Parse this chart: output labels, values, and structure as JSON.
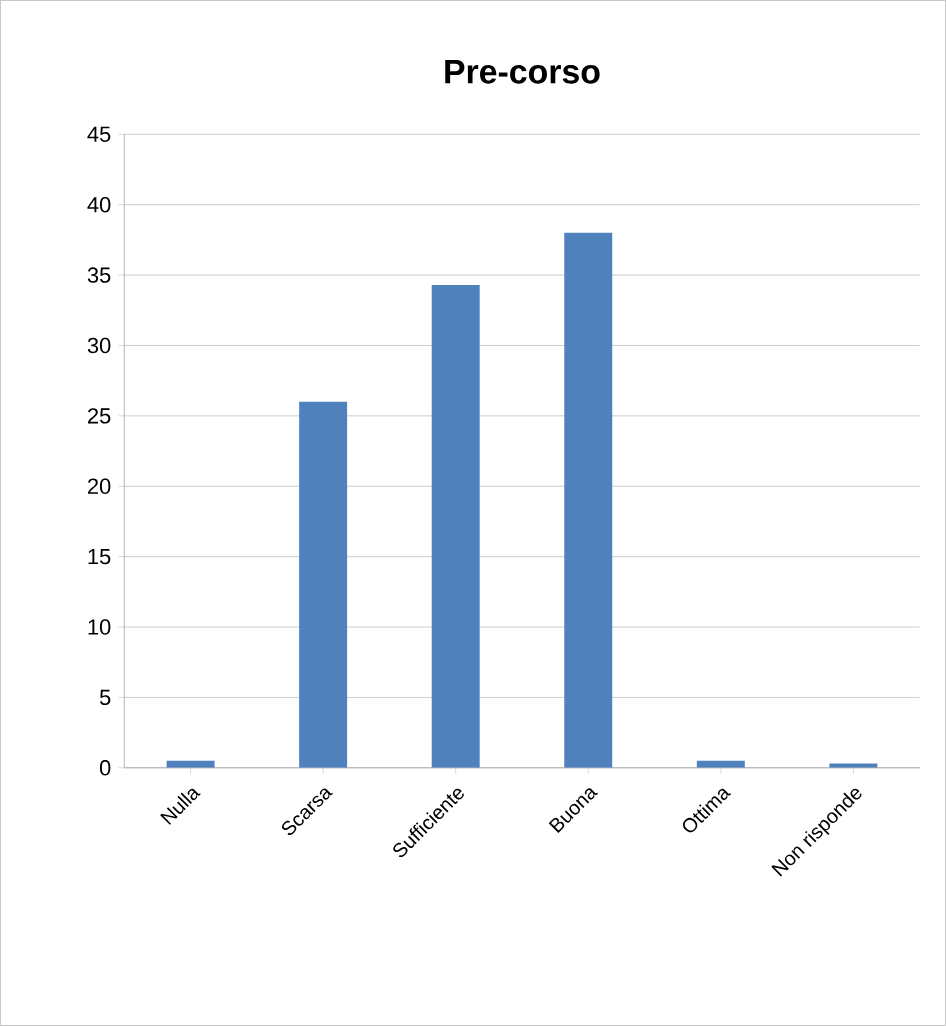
{
  "chart_data": {
    "type": "bar",
    "title": "Pre-corso",
    "categories": [
      "Nulla",
      "Scarsa",
      "Sufficiente",
      "Buona",
      "Ottima",
      "Non risponde"
    ],
    "values": [
      0.5,
      26,
      34.3,
      38,
      0.5,
      0.3
    ],
    "color": "#4f81bd",
    "ylim": [
      0,
      45
    ],
    "yticks": [
      0,
      5,
      10,
      15,
      20,
      25,
      30,
      35,
      40,
      45
    ],
    "grid": "y"
  }
}
